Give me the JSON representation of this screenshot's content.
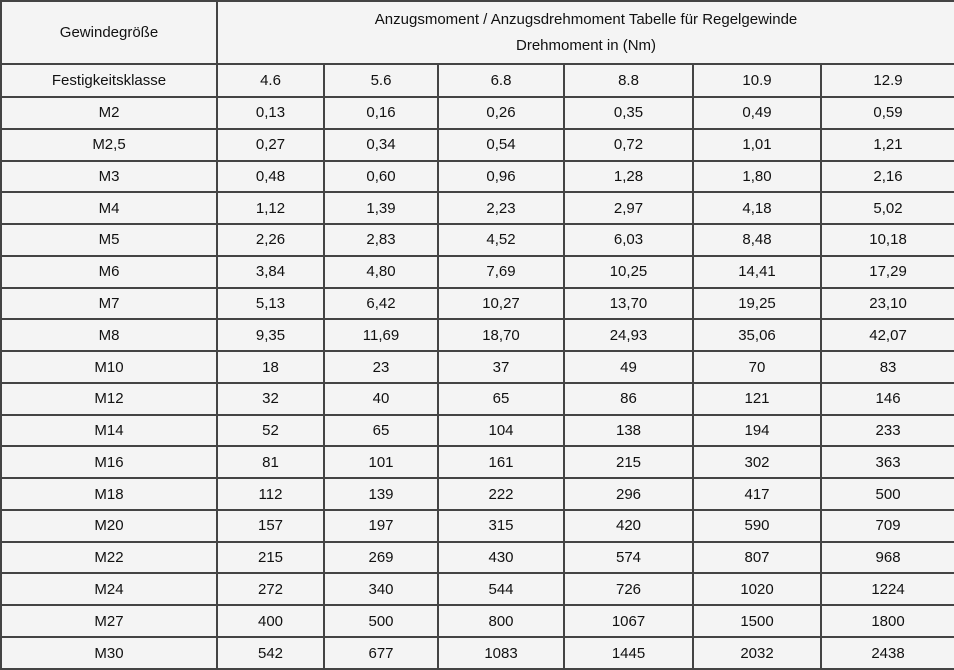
{
  "table": {
    "corner_header": "Gewindegröße",
    "title_line1": "Anzugsmoment / Anzugsdrehmoment Tabelle für Regelgewinde",
    "title_line2": "Drehmoment in (Nm)",
    "class_row_header": "Festigkeitsklasse",
    "classes": [
      "4.6",
      "5.6",
      "6.8",
      "8.8",
      "10.9",
      "12.9"
    ],
    "rows": [
      {
        "size": "M2",
        "values": [
          "0,13",
          "0,16",
          "0,26",
          "0,35",
          "0,49",
          "0,59"
        ]
      },
      {
        "size": "M2,5",
        "values": [
          "0,27",
          "0,34",
          "0,54",
          "0,72",
          "1,01",
          "1,21"
        ]
      },
      {
        "size": "M3",
        "values": [
          "0,48",
          "0,60",
          "0,96",
          "1,28",
          "1,80",
          "2,16"
        ]
      },
      {
        "size": "M4",
        "values": [
          "1,12",
          "1,39",
          "2,23",
          "2,97",
          "4,18",
          "5,02"
        ]
      },
      {
        "size": "M5",
        "values": [
          "2,26",
          "2,83",
          "4,52",
          "6,03",
          "8,48",
          "10,18"
        ]
      },
      {
        "size": "M6",
        "values": [
          "3,84",
          "4,80",
          "7,69",
          "10,25",
          "14,41",
          "17,29"
        ]
      },
      {
        "size": "M7",
        "values": [
          "5,13",
          "6,42",
          "10,27",
          "13,70",
          "19,25",
          "23,10"
        ]
      },
      {
        "size": "M8",
        "values": [
          "9,35",
          "11,69",
          "18,70",
          "24,93",
          "35,06",
          "42,07"
        ]
      },
      {
        "size": "M10",
        "values": [
          "18",
          "23",
          "37",
          "49",
          "70",
          "83"
        ]
      },
      {
        "size": "M12",
        "values": [
          "32",
          "40",
          "65",
          "86",
          "121",
          "146"
        ]
      },
      {
        "size": "M14",
        "values": [
          "52",
          "65",
          "104",
          "138",
          "194",
          "233"
        ]
      },
      {
        "size": "M16",
        "values": [
          "81",
          "101",
          "161",
          "215",
          "302",
          "363"
        ]
      },
      {
        "size": "M18",
        "values": [
          "112",
          "139",
          "222",
          "296",
          "417",
          "500"
        ]
      },
      {
        "size": "M20",
        "values": [
          "157",
          "197",
          "315",
          "420",
          "590",
          "709"
        ]
      },
      {
        "size": "M22",
        "values": [
          "215",
          "269",
          "430",
          "574",
          "807",
          "968"
        ]
      },
      {
        "size": "M24",
        "values": [
          "272",
          "340",
          "544",
          "726",
          "1020",
          "1224"
        ]
      },
      {
        "size": "M27",
        "values": [
          "400",
          "500",
          "800",
          "1067",
          "1500",
          "1800"
        ]
      },
      {
        "size": "M30",
        "values": [
          "542",
          "677",
          "1083",
          "1445",
          "2032",
          "2438"
        ]
      }
    ]
  },
  "colors": {
    "background": "#f4f4f4",
    "border": "#444444",
    "text": "#111111"
  }
}
